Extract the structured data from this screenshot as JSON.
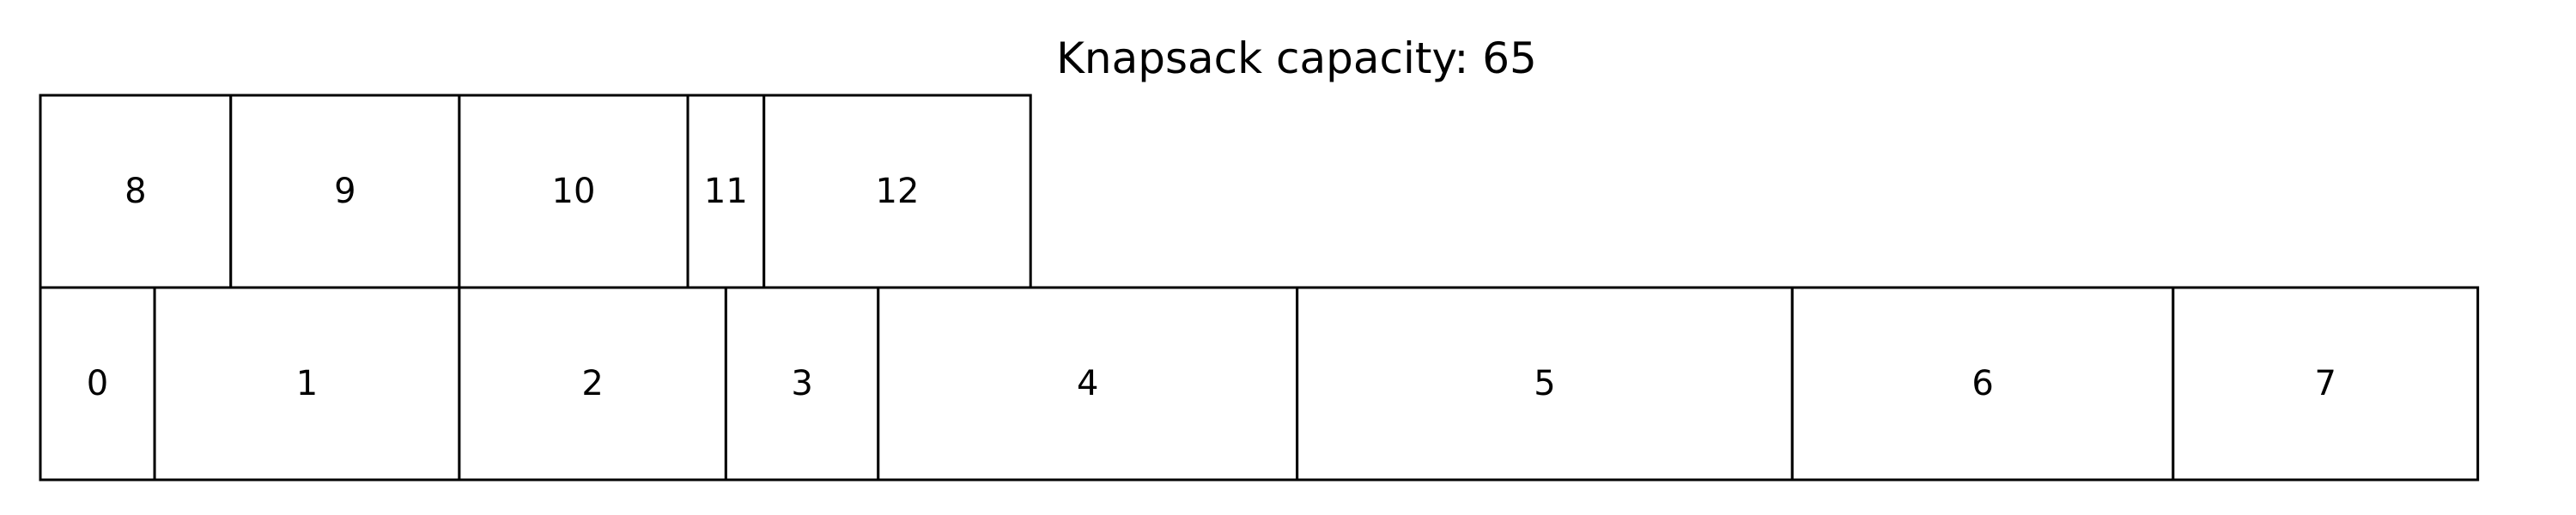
{
  "title": "Knapsack capacity: 65",
  "capacity": 65,
  "rows": [
    {
      "row": "bottom",
      "items": [
        {
          "label": "0",
          "size": 3
        },
        {
          "label": "1",
          "size": 8
        },
        {
          "label": "2",
          "size": 7
        },
        {
          "label": "3",
          "size": 4
        },
        {
          "label": "4",
          "size": 11
        },
        {
          "label": "5",
          "size": 13
        },
        {
          "label": "6",
          "size": 10
        },
        {
          "label": "7",
          "size": 8
        }
      ]
    },
    {
      "row": "top",
      "items": [
        {
          "label": "8",
          "size": 5
        },
        {
          "label": "9",
          "size": 6
        },
        {
          "label": "10",
          "size": 6
        },
        {
          "label": "11",
          "size": 2
        },
        {
          "label": "12",
          "size": 7
        }
      ]
    }
  ]
}
